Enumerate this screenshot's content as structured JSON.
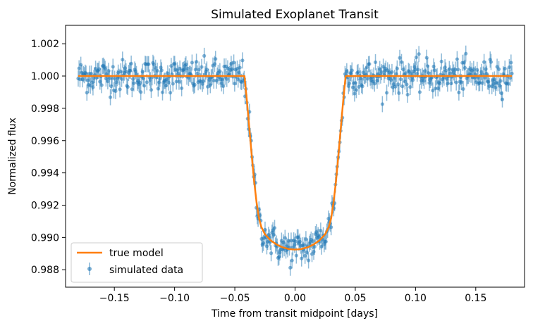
{
  "chart_data": {
    "type": "scatter",
    "title": "Simulated Exoplanet Transit",
    "xlabel": "Time from transit midpoint [days]",
    "ylabel": "Normalized flux",
    "xlim": [
      -0.1905,
      0.1905
    ],
    "ylim": [
      0.98692,
      1.00314
    ],
    "x_ticks": [
      -0.15,
      -0.1,
      -0.05,
      0.0,
      0.05,
      0.1,
      0.15
    ],
    "x_tick_labels": [
      "−0.15",
      "−0.10",
      "−0.05",
      "0.00",
      "0.05",
      "0.10",
      "0.15"
    ],
    "y_ticks": [
      0.988,
      0.99,
      0.992,
      0.994,
      0.996,
      0.998,
      1.0,
      1.002
    ],
    "y_tick_labels": [
      "0.988",
      "0.990",
      "0.992",
      "0.994",
      "0.996",
      "0.998",
      "1.000",
      "1.002"
    ],
    "grid": false,
    "legend_position": "lower-left",
    "series": [
      {
        "name": "true model",
        "kind": "line",
        "color": "#ff7f0e",
        "x": [
          -0.18,
          -0.1,
          -0.05,
          -0.042,
          -0.04,
          -0.038,
          -0.036,
          -0.034,
          -0.032,
          -0.03,
          -0.028,
          -0.025,
          -0.02,
          -0.015,
          -0.01,
          -0.005,
          0.0,
          0.005,
          0.01,
          0.015,
          0.02,
          0.025,
          0.028,
          0.03,
          0.032,
          0.034,
          0.036,
          0.038,
          0.04,
          0.042,
          0.05,
          0.1,
          0.18
        ],
        "y": [
          1.0,
          1.0,
          1.0,
          1.0,
          0.9985,
          0.9968,
          0.9951,
          0.9935,
          0.9922,
          0.9912,
          0.99065,
          0.9902,
          0.9898,
          0.98955,
          0.98938,
          0.98928,
          0.98925,
          0.98928,
          0.98938,
          0.98955,
          0.9898,
          0.9902,
          0.99065,
          0.9912,
          0.9922,
          0.9935,
          0.9951,
          0.9968,
          0.9985,
          1.0,
          1.0,
          1.0,
          1.0
        ]
      },
      {
        "name": "simulated data",
        "kind": "errorbar",
        "color": "#1f77b4",
        "n_points": 500,
        "x_range": [
          -0.18,
          0.18
        ],
        "yerr": 0.0005,
        "noise_sigma": 0.0005
      }
    ]
  }
}
